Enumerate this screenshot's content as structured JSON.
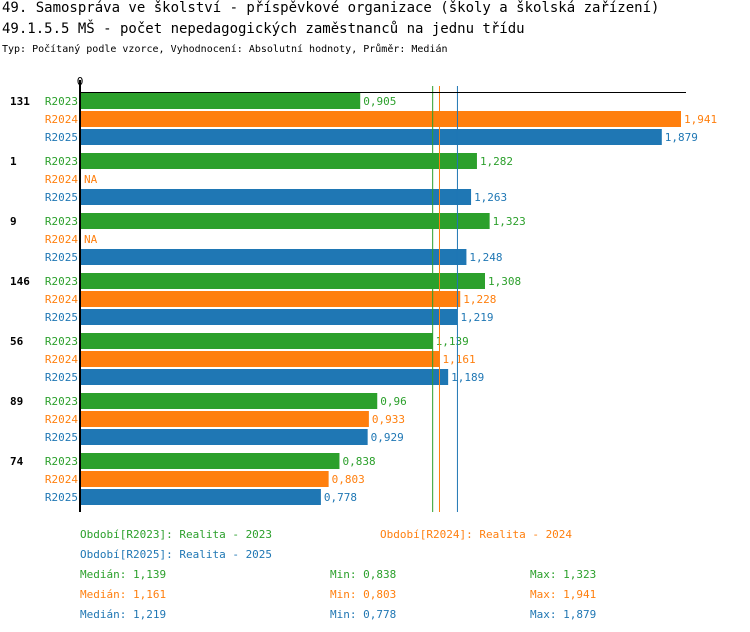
{
  "title_line1": "49. Samospráva ve školství - příspěvkové organizace (školy a školská zařízení)",
  "title_line2": "49.1.5.5 MŠ - počet nepedagogických zaměstnanců na jednu třídu",
  "subtitle": "Typ: Počítaný podle vzorce, Vyhodnocení: Absolutní hodnoty, Průměr: Medián",
  "colors": {
    "R2023": "#2ca02c",
    "R2024": "#ff7f0e",
    "R2025": "#1f77b4"
  },
  "chart_data": {
    "type": "bar",
    "orientation": "horizontal",
    "axis_zero_label": "0",
    "xlim": [
      0,
      1.941
    ],
    "categories": [
      "131",
      "1",
      "9",
      "146",
      "56",
      "89",
      "74"
    ],
    "series": [
      {
        "name": "R2023",
        "values": [
          0.905,
          1.282,
          1.323,
          1.308,
          1.139,
          0.96,
          0.838
        ],
        "labels": [
          "0,905",
          "1,282",
          "1,323",
          "1,308",
          "1,139",
          "0,96",
          "0,838"
        ]
      },
      {
        "name": "R2024",
        "values": [
          1.941,
          null,
          null,
          1.228,
          1.161,
          0.933,
          0.803
        ],
        "labels": [
          "1,941",
          "NA",
          "NA",
          "1,228",
          "1,161",
          "0,933",
          "0,803"
        ]
      },
      {
        "name": "R2025",
        "values": [
          1.879,
          1.263,
          1.248,
          1.219,
          1.189,
          0.929,
          0.778
        ],
        "labels": [
          "1,879",
          "1,263",
          "1,248",
          "1,219",
          "1,189",
          "0,929",
          "0,778"
        ]
      }
    ],
    "medians": {
      "R2023": 1.139,
      "R2024": 1.161,
      "R2025": 1.219
    },
    "legend": [
      {
        "series": "R2023",
        "text": "Období[R2023]: Realita - 2023"
      },
      {
        "series": "R2024",
        "text": "Období[R2024]: Realita - 2024"
      },
      {
        "series": "R2025",
        "text": "Období[R2025]: Realita - 2025"
      }
    ],
    "stats": [
      {
        "series": "R2023",
        "median": "Medián: 1,139",
        "min": "Min: 0,838",
        "max": "Max: 1,323"
      },
      {
        "series": "R2024",
        "median": "Medián: 1,161",
        "min": "Min: 0,803",
        "max": "Max: 1,941"
      },
      {
        "series": "R2025",
        "median": "Medián: 1,219",
        "min": "Min: 0,778",
        "max": "Max: 1,879"
      }
    ]
  }
}
